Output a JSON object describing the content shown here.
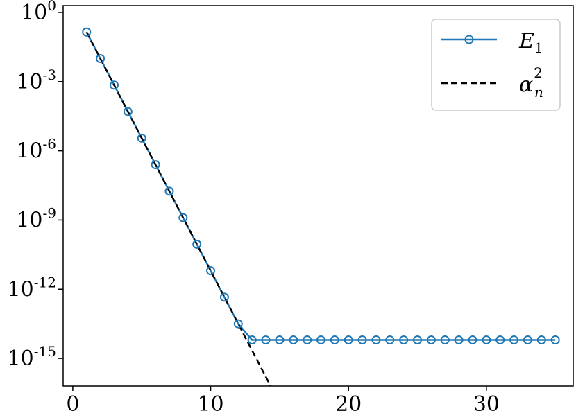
{
  "chart_data": {
    "type": "line",
    "title": "",
    "xlabel": "",
    "ylabel": "",
    "xlim": [
      -0.7,
      36.3
    ],
    "ylim_log10": [
      -16.2,
      0.3
    ],
    "y_scale": "log",
    "grid": false,
    "legend_position": "top-right",
    "x_ticks": [
      0,
      10,
      20,
      30
    ],
    "y_ticks": [
      {
        "base": "10",
        "exponent": "0",
        "log10": 0
      },
      {
        "base": "10",
        "exponent": "-3",
        "log10": -3
      },
      {
        "base": "10",
        "exponent": "-6",
        "log10": -6
      },
      {
        "base": "10",
        "exponent": "-9",
        "log10": -9
      },
      {
        "base": "10",
        "exponent": "-12",
        "log10": -12
      },
      {
        "base": "10",
        "exponent": "-15",
        "log10": -15
      }
    ],
    "series": [
      {
        "name": "E1",
        "legend_main": "E",
        "legend_sub": "1",
        "style": "solid-line-circle-markers",
        "color": "#1f77b4",
        "x": [
          1,
          2,
          3,
          4,
          5,
          6,
          7,
          8,
          9,
          10,
          11,
          12,
          13,
          14,
          15,
          16,
          17,
          18,
          19,
          20,
          21,
          22,
          23,
          24,
          25,
          26,
          27,
          28,
          29,
          30,
          31,
          32,
          33,
          34,
          35
        ],
        "log10_y": [
          -0.85,
          -2.0,
          -3.15,
          -4.3,
          -5.45,
          -6.6,
          -7.75,
          -8.9,
          -10.05,
          -11.2,
          -12.35,
          -13.5,
          -14.2,
          -14.2,
          -14.2,
          -14.2,
          -14.2,
          -14.2,
          -14.2,
          -14.2,
          -14.2,
          -14.2,
          -14.2,
          -14.2,
          -14.2,
          -14.2,
          -14.2,
          -14.2,
          -14.2,
          -14.2,
          -14.2,
          -14.2,
          -14.2,
          -14.2,
          -14.2
        ]
      },
      {
        "name": "alpha_n^2",
        "legend_main": "α",
        "legend_sub": "n",
        "legend_sup": "2",
        "style": "dashed",
        "color": "#000000",
        "x": [
          1,
          15
        ],
        "log10_y": [
          -0.85,
          -16.95
        ]
      }
    ]
  }
}
